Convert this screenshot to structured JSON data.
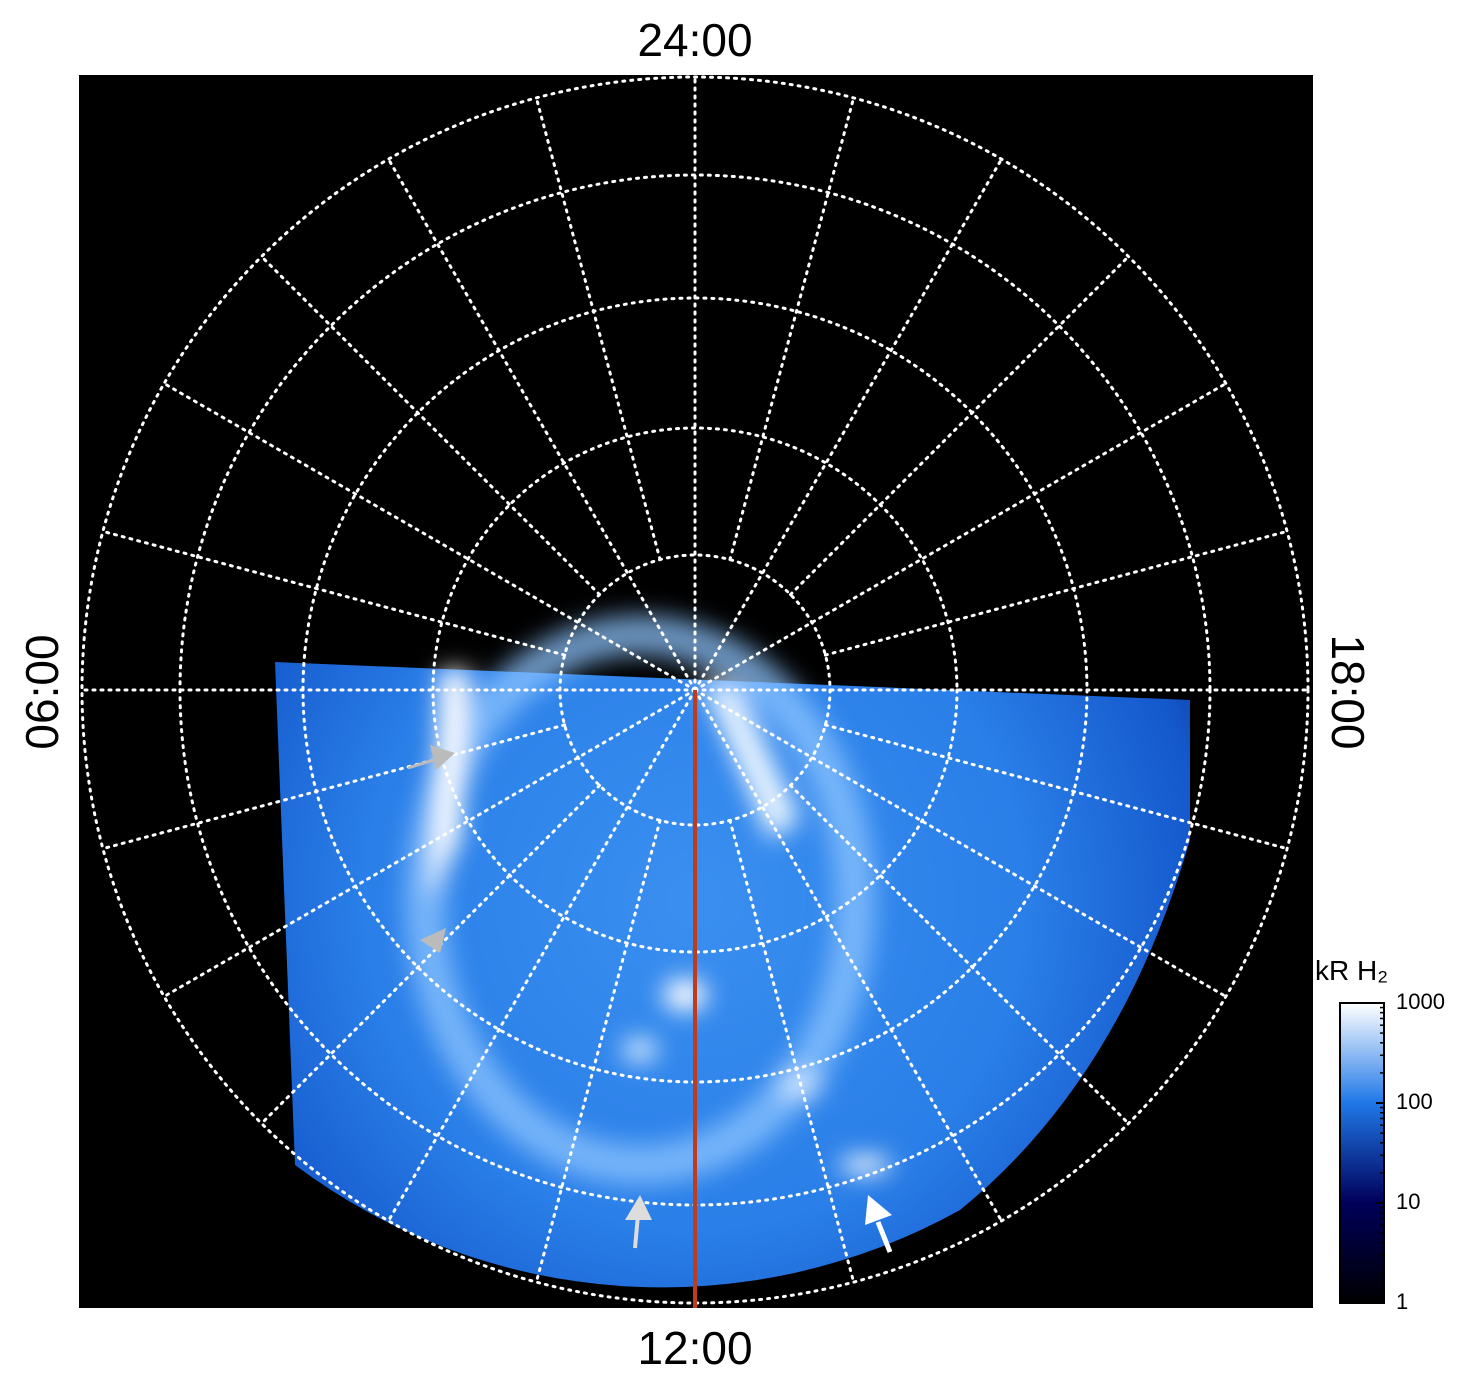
{
  "chart_data": {
    "type": "polar-image",
    "local_time_labels": {
      "top": "24:00",
      "bottom": "12:00",
      "left": "06:00",
      "right": "18:00"
    },
    "colorbar": {
      "label": "kR H₂",
      "scale": "log",
      "zlim": [
        1,
        1000
      ],
      "zticks": [
        1,
        10,
        100,
        1000
      ],
      "colors": [
        "#000000",
        "#00005a",
        "#1f78e8",
        "#ffffff"
      ]
    },
    "meridian_color": "#c03a1c"
  }
}
